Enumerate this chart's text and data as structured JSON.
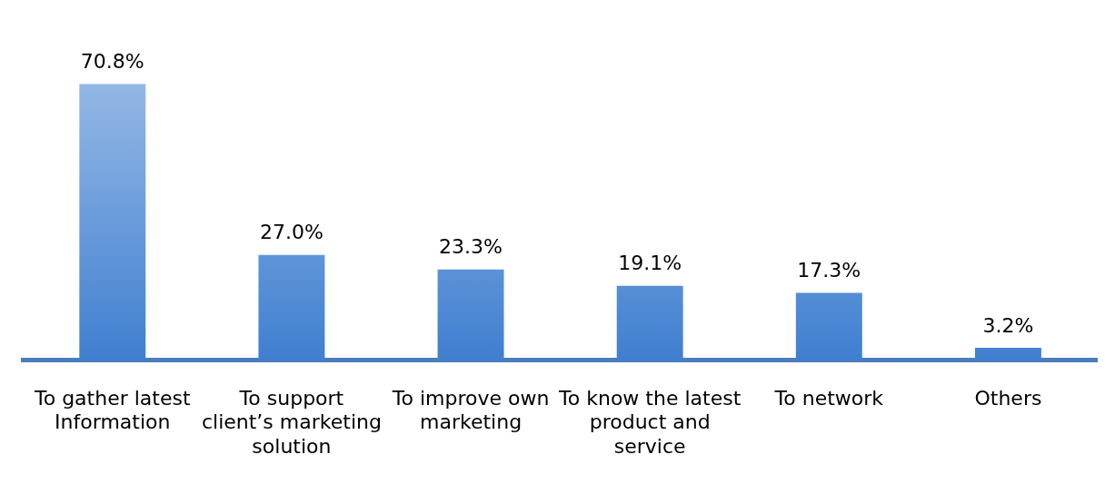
{
  "chart_data": {
    "type": "bar",
    "categories": [
      "To gather latest Information",
      "To support client’s marketing solution",
      "To improve own marketing",
      "To know the latest product and service",
      "To network",
      "Others"
    ],
    "values": [
      70.8,
      27.0,
      23.3,
      19.1,
      17.3,
      3.2
    ],
    "value_labels": [
      "70.8%",
      "27.0%",
      "23.3%",
      "19.1%",
      "17.3%",
      "3.2%"
    ],
    "color": "#3f7fd0",
    "grid": false,
    "legend": false
  }
}
